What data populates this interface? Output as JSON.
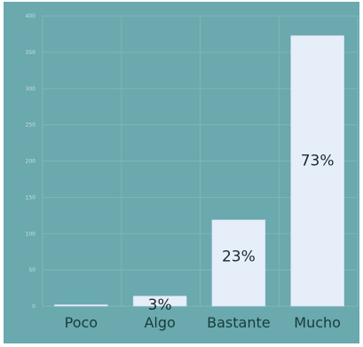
{
  "colors": {
    "panel": "#6aa9ad",
    "bar": "#e6eefa",
    "bar_stroke": "#c9d6ee",
    "gridline": "#7fb6ba",
    "axis_text": "#c5e0e1",
    "category_text": "#173b3e",
    "data_label": "#1a2a2c"
  },
  "chart_data": {
    "type": "bar",
    "title": "",
    "xlabel": "",
    "ylabel": "",
    "ylim": [
      0,
      400
    ],
    "yticks": [
      0,
      50,
      100,
      150,
      200,
      250,
      300,
      350,
      400
    ],
    "grid": true,
    "categories": [
      "Poco",
      "Algo",
      "Bastante",
      "Mucho"
    ],
    "values": [
      2,
      14,
      119,
      373
    ],
    "data_labels": [
      "",
      "3%",
      "23%",
      "73%"
    ]
  }
}
